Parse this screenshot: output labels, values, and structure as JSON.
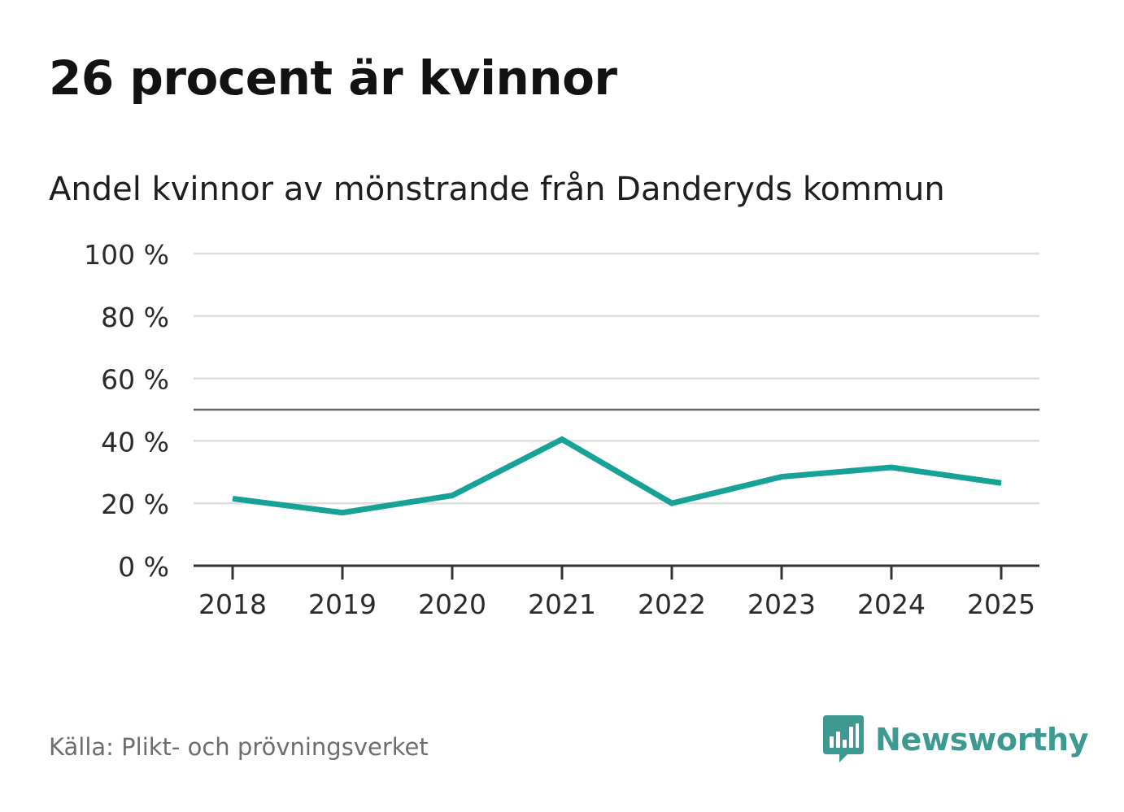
{
  "header": {
    "title": "26 procent är kvinnor",
    "subtitle": "Andel kvinnor av mönstrande från Danderyds kommun"
  },
  "footer": {
    "source": "Källa: Plikt- och prövningsverket",
    "brand": "Newsworthy",
    "brand_icon": "bar-chart-speech-bubble-icon"
  },
  "colors": {
    "line": "#17a297",
    "grid": "#dedede",
    "reference_line": "#666666",
    "axis": "#333333",
    "brand": "#3e9a90"
  },
  "chart_data": {
    "type": "line",
    "title": "Andel kvinnor av mönstrande från Danderyds kommun",
    "xlabel": "",
    "ylabel": "",
    "x": [
      "2018",
      "2019",
      "2020",
      "2021",
      "2022",
      "2023",
      "2024",
      "2025"
    ],
    "series": [
      {
        "name": "Andel kvinnor",
        "values": [
          21.5,
          17,
          22.5,
          40.5,
          20,
          28.5,
          31.5,
          26.5
        ]
      }
    ],
    "ylim": [
      0,
      100
    ],
    "yticks": [
      0,
      20,
      40,
      60,
      80,
      100
    ],
    "ytick_labels": [
      "0 %",
      "20 %",
      "40 %",
      "60 %",
      "80 %",
      "100 %"
    ],
    "reference_line": 50,
    "grid": true,
    "legend": "none"
  }
}
